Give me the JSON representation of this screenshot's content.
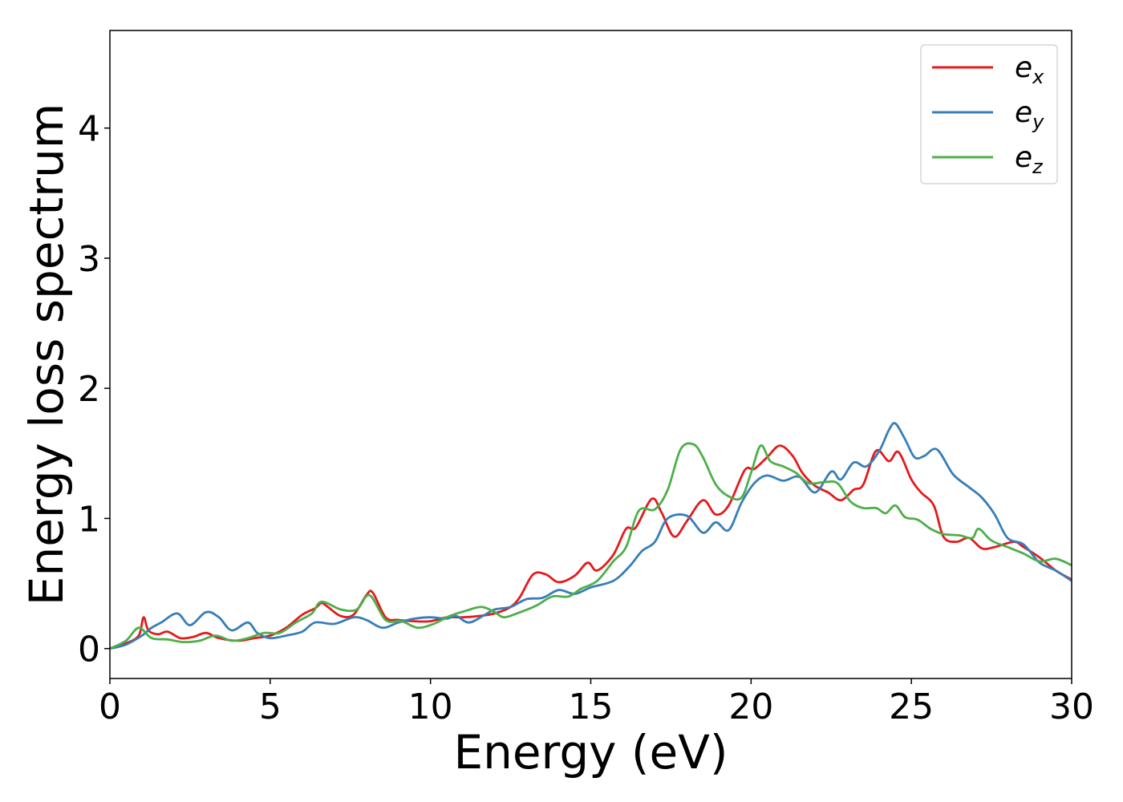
{
  "chart_data": {
    "type": "line",
    "xlabel": "Energy (eV)",
    "ylabel": "Energy loss spectrum",
    "xlim": [
      0,
      30
    ],
    "ylim": [
      -0.23,
      4.75
    ],
    "xticks": [
      0,
      5,
      10,
      15,
      20,
      25,
      30
    ],
    "yticks": [
      0,
      1,
      2,
      3,
      4
    ],
    "xtick_labels": [
      "0",
      "5",
      "10",
      "15",
      "20",
      "25",
      "30"
    ],
    "ytick_labels": [
      "0",
      "1",
      "2",
      "3",
      "4"
    ],
    "grid": false,
    "legend_position": "top-right",
    "series": [
      {
        "name": "e_x",
        "legend_base": "e",
        "legend_sub": "x",
        "color": "#e41a1c",
        "points": [
          [
            0,
            0
          ],
          [
            0.5,
            0.04
          ],
          [
            0.9,
            0.1
          ],
          [
            1.05,
            0.24
          ],
          [
            1.2,
            0.14
          ],
          [
            1.5,
            0.11
          ],
          [
            1.8,
            0.13
          ],
          [
            2.2,
            0.08
          ],
          [
            2.6,
            0.09
          ],
          [
            3.0,
            0.12
          ],
          [
            3.4,
            0.08
          ],
          [
            4.0,
            0.06
          ],
          [
            4.5,
            0.08
          ],
          [
            5.0,
            0.1
          ],
          [
            5.5,
            0.16
          ],
          [
            6.0,
            0.26
          ],
          [
            6.4,
            0.31
          ],
          [
            6.6,
            0.35
          ],
          [
            6.8,
            0.32
          ],
          [
            7.2,
            0.25
          ],
          [
            7.6,
            0.26
          ],
          [
            8.0,
            0.41
          ],
          [
            8.2,
            0.43
          ],
          [
            8.6,
            0.24
          ],
          [
            9.0,
            0.22
          ],
          [
            9.5,
            0.21
          ],
          [
            10.0,
            0.21
          ],
          [
            10.5,
            0.24
          ],
          [
            11.0,
            0.24
          ],
          [
            11.5,
            0.25
          ],
          [
            12.0,
            0.27
          ],
          [
            12.5,
            0.32
          ],
          [
            12.8,
            0.4
          ],
          [
            13.2,
            0.57
          ],
          [
            13.6,
            0.57
          ],
          [
            14.0,
            0.51
          ],
          [
            14.5,
            0.56
          ],
          [
            14.9,
            0.66
          ],
          [
            15.2,
            0.6
          ],
          [
            15.7,
            0.72
          ],
          [
            16.1,
            0.92
          ],
          [
            16.4,
            0.93
          ],
          [
            16.9,
            1.15
          ],
          [
            17.2,
            1.05
          ],
          [
            17.6,
            0.86
          ],
          [
            18.0,
            0.98
          ],
          [
            18.5,
            1.14
          ],
          [
            18.9,
            1.03
          ],
          [
            19.3,
            1.1
          ],
          [
            19.8,
            1.37
          ],
          [
            20.1,
            1.38
          ],
          [
            20.5,
            1.47
          ],
          [
            20.9,
            1.56
          ],
          [
            21.3,
            1.48
          ],
          [
            21.6,
            1.35
          ],
          [
            22.0,
            1.25
          ],
          [
            22.4,
            1.2
          ],
          [
            22.8,
            1.14
          ],
          [
            23.2,
            1.22
          ],
          [
            23.5,
            1.26
          ],
          [
            23.9,
            1.52
          ],
          [
            24.3,
            1.44
          ],
          [
            24.6,
            1.51
          ],
          [
            25.0,
            1.3
          ],
          [
            25.3,
            1.2
          ],
          [
            25.7,
            1.1
          ],
          [
            26.0,
            0.86
          ],
          [
            26.4,
            0.82
          ],
          [
            26.8,
            0.85
          ],
          [
            27.2,
            0.77
          ],
          [
            27.6,
            0.78
          ],
          [
            28.2,
            0.82
          ],
          [
            28.5,
            0.78
          ],
          [
            29.0,
            0.7
          ],
          [
            29.5,
            0.6
          ],
          [
            30.0,
            0.53
          ]
        ]
      },
      {
        "name": "e_y",
        "legend_base": "e",
        "legend_sub": "y",
        "color": "#377eb8",
        "points": [
          [
            0,
            0
          ],
          [
            0.5,
            0.03
          ],
          [
            1.0,
            0.1
          ],
          [
            1.3,
            0.16
          ],
          [
            1.6,
            0.2
          ],
          [
            2.1,
            0.27
          ],
          [
            2.5,
            0.18
          ],
          [
            3.0,
            0.28
          ],
          [
            3.4,
            0.24
          ],
          [
            3.8,
            0.14
          ],
          [
            4.3,
            0.2
          ],
          [
            4.6,
            0.12
          ],
          [
            5.0,
            0.08
          ],
          [
            5.5,
            0.1
          ],
          [
            6.0,
            0.13
          ],
          [
            6.4,
            0.2
          ],
          [
            7.0,
            0.19
          ],
          [
            7.6,
            0.24
          ],
          [
            8.0,
            0.22
          ],
          [
            8.5,
            0.16
          ],
          [
            9.0,
            0.2
          ],
          [
            9.5,
            0.23
          ],
          [
            10.0,
            0.24
          ],
          [
            10.5,
            0.23
          ],
          [
            10.8,
            0.25
          ],
          [
            11.2,
            0.2
          ],
          [
            11.7,
            0.26
          ],
          [
            12.0,
            0.3
          ],
          [
            12.5,
            0.32
          ],
          [
            13.0,
            0.38
          ],
          [
            13.5,
            0.39
          ],
          [
            14.0,
            0.45
          ],
          [
            14.5,
            0.42
          ],
          [
            15.0,
            0.47
          ],
          [
            15.7,
            0.52
          ],
          [
            16.2,
            0.63
          ],
          [
            16.6,
            0.75
          ],
          [
            17.0,
            0.82
          ],
          [
            17.4,
            1.0
          ],
          [
            18.0,
            1.02
          ],
          [
            18.5,
            0.89
          ],
          [
            18.9,
            0.97
          ],
          [
            19.3,
            0.91
          ],
          [
            19.7,
            1.12
          ],
          [
            20.1,
            1.27
          ],
          [
            20.5,
            1.33
          ],
          [
            21.0,
            1.29
          ],
          [
            21.5,
            1.32
          ],
          [
            22.0,
            1.2
          ],
          [
            22.5,
            1.36
          ],
          [
            22.8,
            1.3
          ],
          [
            23.2,
            1.43
          ],
          [
            23.6,
            1.4
          ],
          [
            24.0,
            1.52
          ],
          [
            24.3,
            1.68
          ],
          [
            24.5,
            1.73
          ],
          [
            24.8,
            1.61
          ],
          [
            25.1,
            1.47
          ],
          [
            25.4,
            1.48
          ],
          [
            25.8,
            1.53
          ],
          [
            26.3,
            1.34
          ],
          [
            26.8,
            1.24
          ],
          [
            27.2,
            1.16
          ],
          [
            27.6,
            1.03
          ],
          [
            28.0,
            0.85
          ],
          [
            28.5,
            0.8
          ],
          [
            29.0,
            0.66
          ],
          [
            29.5,
            0.6
          ],
          [
            30.0,
            0.52
          ]
        ]
      },
      {
        "name": "e_z",
        "legend_base": "e",
        "legend_sub": "z",
        "color": "#4daf4a",
        "points": [
          [
            0,
            0
          ],
          [
            0.5,
            0.06
          ],
          [
            0.9,
            0.16
          ],
          [
            1.3,
            0.08
          ],
          [
            1.8,
            0.07
          ],
          [
            2.3,
            0.05
          ],
          [
            2.8,
            0.06
          ],
          [
            3.3,
            0.1
          ],
          [
            3.8,
            0.06
          ],
          [
            4.3,
            0.08
          ],
          [
            4.8,
            0.12
          ],
          [
            5.3,
            0.12
          ],
          [
            5.8,
            0.2
          ],
          [
            6.3,
            0.27
          ],
          [
            6.6,
            0.36
          ],
          [
            7.2,
            0.3
          ],
          [
            7.7,
            0.3
          ],
          [
            8.1,
            0.41
          ],
          [
            8.6,
            0.22
          ],
          [
            9.1,
            0.21
          ],
          [
            9.6,
            0.16
          ],
          [
            10.1,
            0.19
          ],
          [
            10.6,
            0.25
          ],
          [
            11.1,
            0.29
          ],
          [
            11.6,
            0.32
          ],
          [
            12.0,
            0.28
          ],
          [
            12.3,
            0.24
          ],
          [
            12.8,
            0.28
          ],
          [
            13.3,
            0.33
          ],
          [
            13.8,
            0.4
          ],
          [
            14.3,
            0.4
          ],
          [
            14.7,
            0.46
          ],
          [
            15.2,
            0.52
          ],
          [
            15.7,
            0.67
          ],
          [
            16.1,
            0.78
          ],
          [
            16.5,
            1.06
          ],
          [
            17.0,
            1.07
          ],
          [
            17.4,
            1.22
          ],
          [
            17.8,
            1.53
          ],
          [
            18.2,
            1.57
          ],
          [
            18.5,
            1.47
          ],
          [
            18.9,
            1.26
          ],
          [
            19.3,
            1.17
          ],
          [
            19.7,
            1.16
          ],
          [
            20.0,
            1.35
          ],
          [
            20.3,
            1.56
          ],
          [
            20.6,
            1.44
          ],
          [
            21.0,
            1.4
          ],
          [
            21.4,
            1.35
          ],
          [
            21.8,
            1.27
          ],
          [
            22.3,
            1.28
          ],
          [
            22.7,
            1.27
          ],
          [
            23.1,
            1.13
          ],
          [
            23.5,
            1.08
          ],
          [
            23.9,
            1.08
          ],
          [
            24.2,
            1.04
          ],
          [
            24.5,
            1.1
          ],
          [
            24.8,
            1.01
          ],
          [
            25.2,
            0.99
          ],
          [
            25.6,
            0.92
          ],
          [
            26.0,
            0.88
          ],
          [
            26.5,
            0.87
          ],
          [
            26.9,
            0.85
          ],
          [
            27.1,
            0.92
          ],
          [
            27.5,
            0.83
          ],
          [
            28.0,
            0.78
          ],
          [
            28.5,
            0.73
          ],
          [
            29.0,
            0.67
          ],
          [
            29.5,
            0.69
          ],
          [
            30.0,
            0.64
          ]
        ]
      }
    ]
  }
}
